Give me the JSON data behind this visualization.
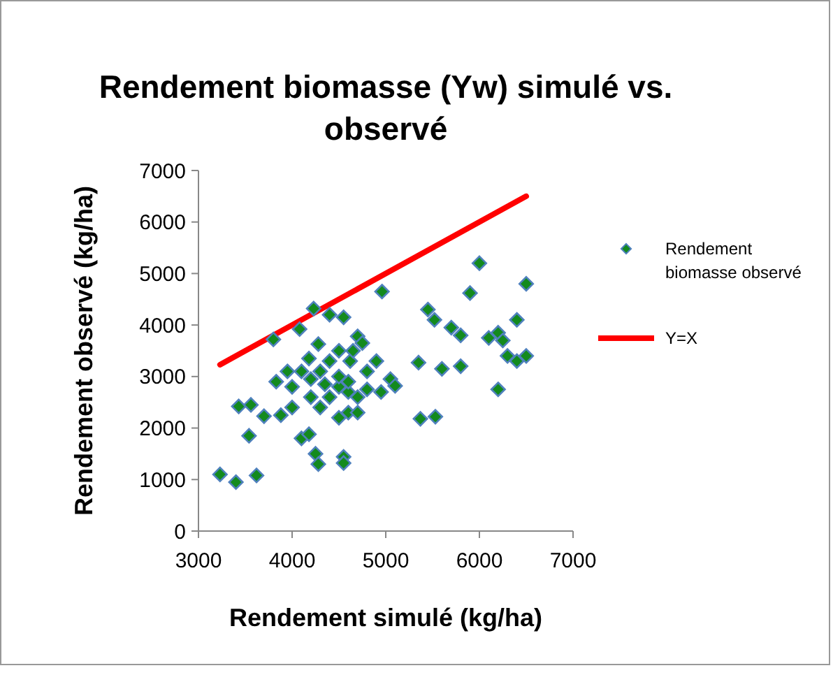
{
  "chart_data": {
    "type": "scatter",
    "title": "Rendement biomasse (Yw) simulé vs. observé",
    "xlabel": "Rendement simulé (kg/ha)",
    "ylabel": "Rendement observé (kg/ha)",
    "xlim": [
      3000,
      7000
    ],
    "xticks": [
      3000,
      4000,
      5000,
      6000,
      7000
    ],
    "ylim": [
      0,
      7000
    ],
    "yticks": [
      0,
      1000,
      2000,
      3000,
      4000,
      5000,
      6000,
      7000
    ],
    "grid": false,
    "legend": "right",
    "series": [
      {
        "name": "Rendement biomasse observé",
        "marker": "diamond",
        "color": "#138a1e",
        "x": [
          3230,
          3400,
          3620,
          3430,
          3560,
          3540,
          3700,
          3800,
          3830,
          3950,
          4000,
          4080,
          3880,
          4100,
          4180,
          4250,
          4280,
          4230,
          4400,
          4550,
          4280,
          4180,
          4300,
          4350,
          4500,
          4550,
          4550,
          4600,
          4620,
          4650,
          4700,
          4750,
          4800,
          4900,
          4960,
          4950,
          5050,
          5100,
          5370,
          5530,
          5350,
          5450,
          5520,
          5600,
          5700,
          5800,
          5800,
          5900,
          6000,
          6100,
          6200,
          6250,
          6200,
          6300,
          6400,
          6400,
          6500,
          6500,
          4000,
          4200,
          4400,
          4500,
          4500,
          4600,
          4700,
          4500,
          4300,
          4400,
          4700,
          4800,
          4100,
          4600,
          4200
        ],
        "values": [
          1100,
          950,
          1080,
          2420,
          2450,
          1850,
          2230,
          3720,
          2900,
          3100,
          2400,
          3920,
          2250,
          1800,
          1880,
          1500,
          1300,
          4320,
          4200,
          4150,
          3630,
          3350,
          3100,
          2850,
          2200,
          1440,
          1320,
          2700,
          3300,
          3500,
          3780,
          3650,
          3100,
          3300,
          4650,
          2700,
          2950,
          2820,
          2180,
          2220,
          3270,
          4300,
          4100,
          3150,
          3950,
          3800,
          3200,
          4620,
          5200,
          3750,
          3850,
          3700,
          2750,
          3400,
          4100,
          3300,
          4800,
          3400,
          2800,
          2600,
          2600,
          2800,
          3000,
          2300,
          2600,
          3500,
          2400,
          3300,
          2300,
          2750,
          3100,
          2900,
          2950
        ]
      },
      {
        "name": "Y=X",
        "type": "line",
        "color": "#ff0000",
        "marker": "none",
        "line_style": "solid",
        "x": [
          3230,
          6500
        ],
        "values": [
          3230,
          6500
        ]
      }
    ]
  }
}
